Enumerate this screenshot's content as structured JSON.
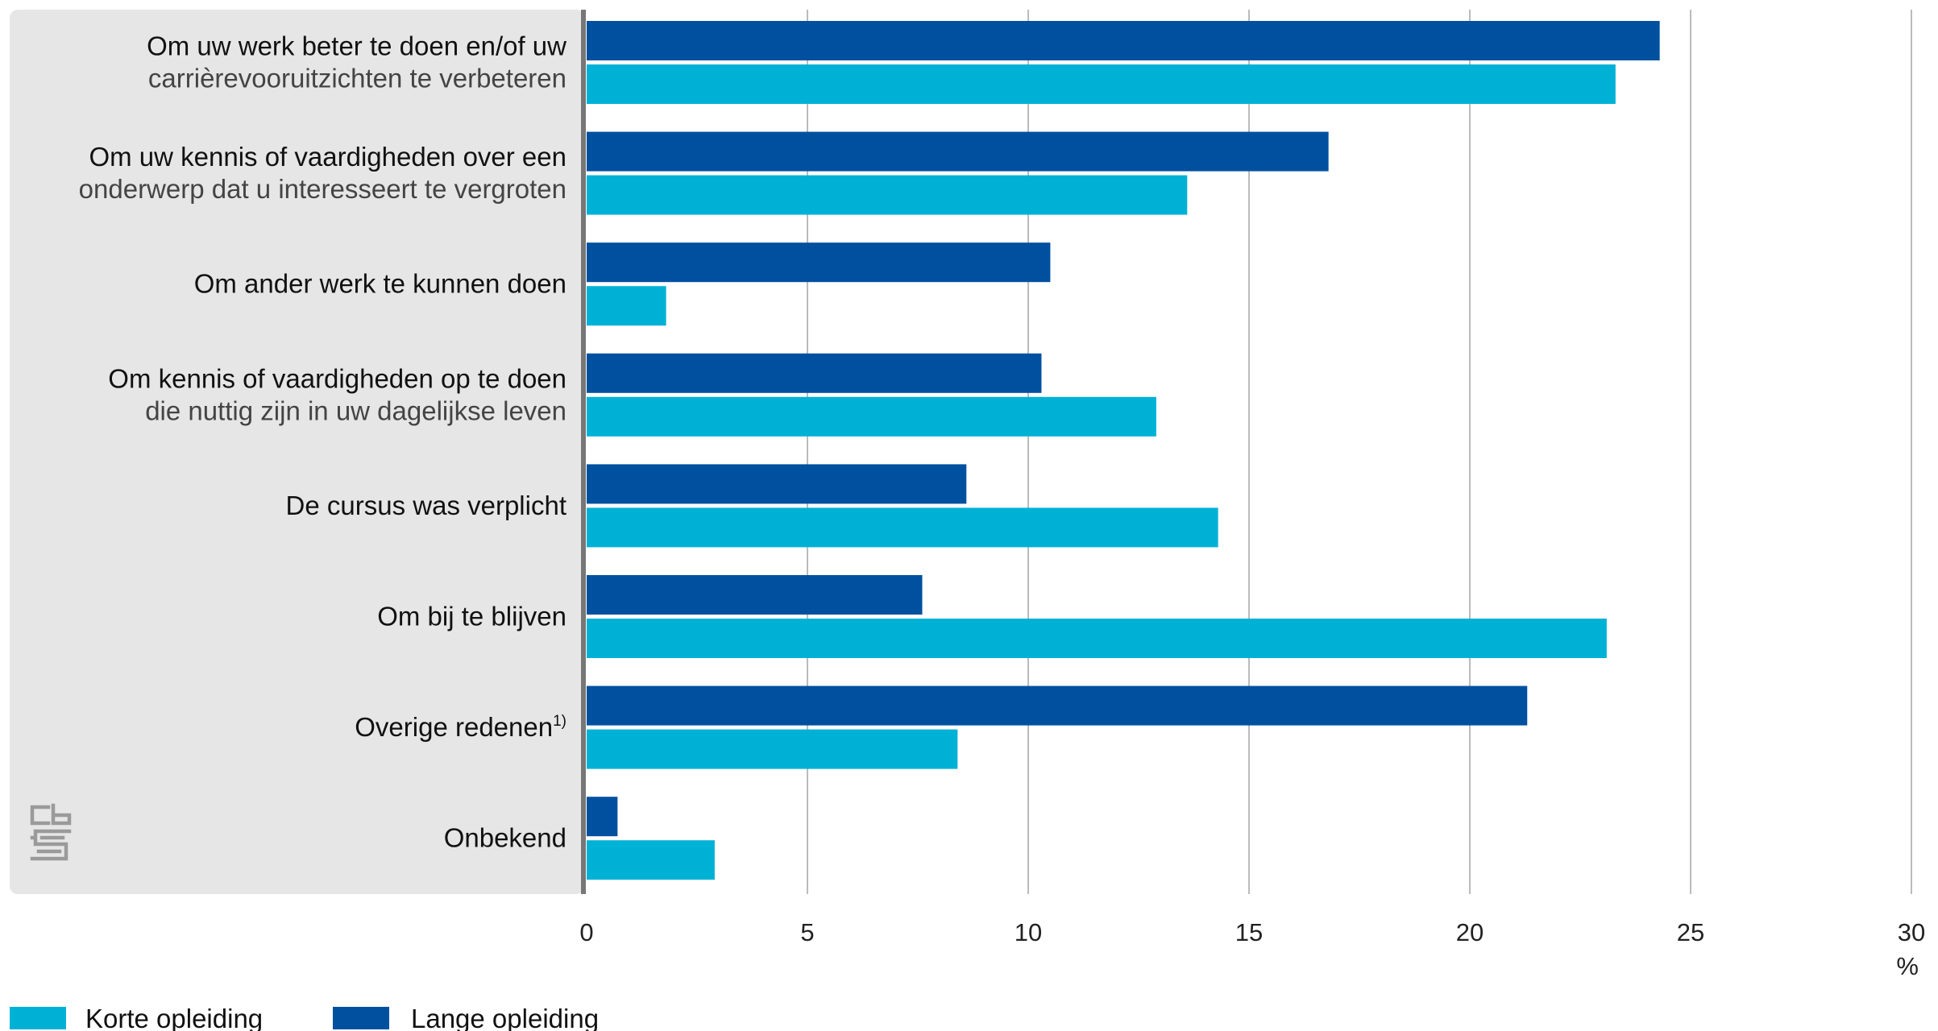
{
  "chart_data": {
    "type": "bar",
    "orientation": "horizontal",
    "categories": [
      {
        "lines": [
          "Om uw werk beter te doen en/of uw",
          "carrièrevooruitzichten te verbeteren"
        ]
      },
      {
        "lines": [
          "Om uw kennis of vaardigheden over een",
          "onderwerp dat u interesseert te vergroten"
        ]
      },
      {
        "lines": [
          "Om ander werk te kunnen doen"
        ]
      },
      {
        "lines": [
          "Om kennis of vaardigheden op te doen",
          "die nuttig zijn in uw dagelijkse leven"
        ]
      },
      {
        "lines": [
          "De cursus was verplicht"
        ]
      },
      {
        "lines": [
          "Om bij te blijven"
        ]
      },
      {
        "lines": [
          "Overige redenen"
        ],
        "sup": "1)"
      },
      {
        "lines": [
          "Onbekend"
        ]
      }
    ],
    "series": [
      {
        "name": "Lange opleiding",
        "color": "#0050a0",
        "values": [
          24.3,
          16.8,
          10.5,
          10.3,
          8.6,
          7.6,
          21.3,
          0.7
        ]
      },
      {
        "name": "Korte opleiding",
        "color": "#00b1d6",
        "values": [
          23.3,
          13.6,
          1.8,
          12.9,
          14.3,
          23.1,
          8.4,
          2.9
        ]
      }
    ],
    "xlim": [
      0,
      30
    ],
    "xticks": [
      "0",
      "5",
      "10",
      "15",
      "20",
      "25",
      "30"
    ],
    "xunit": "%",
    "grid": true,
    "legend": {
      "position": "bottom-left",
      "order": [
        "Korte opleiding",
        "Lange opleiding"
      ]
    },
    "colors": {
      "label_panel": "#e6e6e6",
      "axis_line": "#777777",
      "grid": "#bbbbbb",
      "logo": "#9a9a9a"
    }
  }
}
